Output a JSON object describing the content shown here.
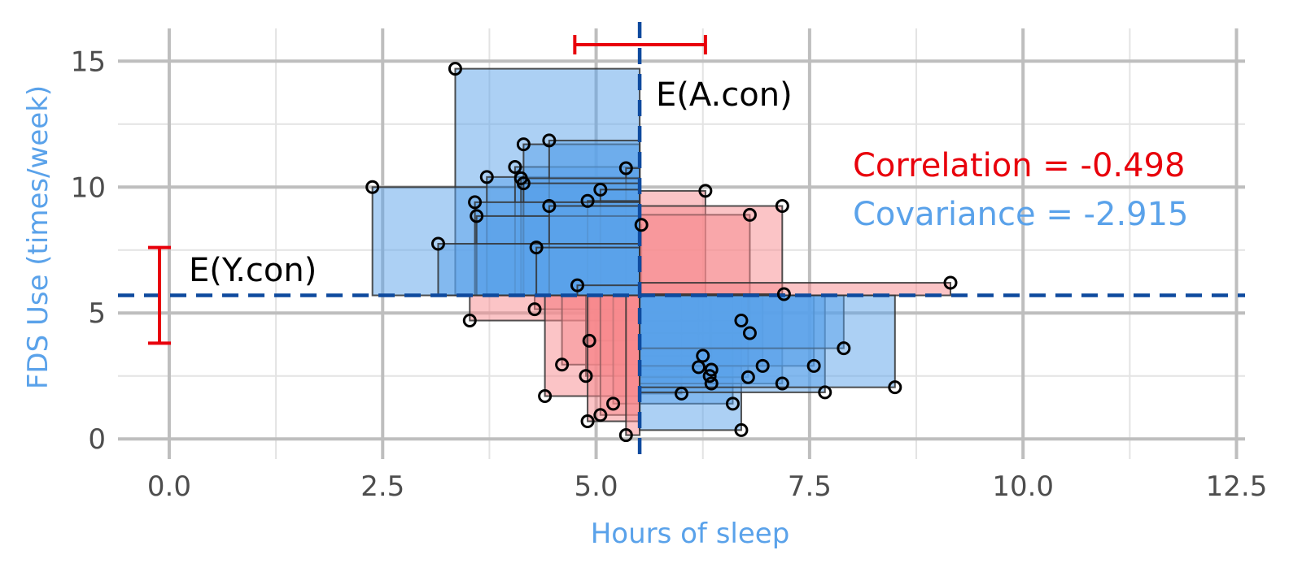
{
  "chart_data": {
    "type": "scatter",
    "title": "",
    "xlabel": "Hours of sleep",
    "ylabel": "FDS Use (times/week)",
    "xlim": [
      -0.6,
      12.6
    ],
    "ylim": [
      -0.8,
      16.3
    ],
    "x_ticks": [
      "0.0",
      "2.5",
      "5.0",
      "7.5",
      "10.0",
      "12.5"
    ],
    "x_tick_values": [
      0,
      2.5,
      5,
      7.5,
      10,
      12.5
    ],
    "y_ticks": [
      "0",
      "5",
      "10",
      "15"
    ],
    "y_tick_values": [
      0,
      5,
      10,
      15
    ],
    "grid": true,
    "mean_x": 5.51,
    "mean_y": 5.7,
    "mean_x_label": "E(A.con)",
    "mean_y_label": "E(Y.con)",
    "mean_x_interval": [
      4.75,
      6.28
    ],
    "mean_y_interval": [
      3.8,
      7.6
    ],
    "correlation_text": "Correlation = -0.498",
    "covariance_text": "Covariance = -2.915",
    "points": [
      {
        "x": 3.35,
        "y": 14.7
      },
      {
        "x": 2.38,
        "y": 10.0
      },
      {
        "x": 3.72,
        "y": 10.4
      },
      {
        "x": 4.05,
        "y": 10.8
      },
      {
        "x": 4.15,
        "y": 11.7
      },
      {
        "x": 4.45,
        "y": 11.85
      },
      {
        "x": 5.35,
        "y": 10.75
      },
      {
        "x": 4.12,
        "y": 10.35
      },
      {
        "x": 4.15,
        "y": 10.15
      },
      {
        "x": 5.05,
        "y": 9.9
      },
      {
        "x": 4.9,
        "y": 9.45
      },
      {
        "x": 3.58,
        "y": 9.4
      },
      {
        "x": 3.6,
        "y": 8.85
      },
      {
        "x": 4.45,
        "y": 9.25
      },
      {
        "x": 3.15,
        "y": 7.75
      },
      {
        "x": 4.3,
        "y": 7.6
      },
      {
        "x": 5.53,
        "y": 8.5
      },
      {
        "x": 6.28,
        "y": 9.85
      },
      {
        "x": 6.8,
        "y": 8.9
      },
      {
        "x": 7.18,
        "y": 9.25
      },
      {
        "x": 9.15,
        "y": 6.2
      },
      {
        "x": 7.2,
        "y": 5.75
      },
      {
        "x": 4.78,
        "y": 6.1
      },
      {
        "x": 4.28,
        "y": 5.15
      },
      {
        "x": 3.52,
        "y": 4.7
      },
      {
        "x": 4.92,
        "y": 3.9
      },
      {
        "x": 4.6,
        "y": 2.95
      },
      {
        "x": 4.88,
        "y": 2.5
      },
      {
        "x": 4.4,
        "y": 1.7
      },
      {
        "x": 5.2,
        "y": 1.4
      },
      {
        "x": 5.05,
        "y": 0.95
      },
      {
        "x": 4.9,
        "y": 0.7
      },
      {
        "x": 5.35,
        "y": 0.15
      },
      {
        "x": 6.0,
        "y": 1.8
      },
      {
        "x": 6.6,
        "y": 1.4
      },
      {
        "x": 6.7,
        "y": 0.35
      },
      {
        "x": 6.2,
        "y": 2.85
      },
      {
        "x": 6.25,
        "y": 3.3
      },
      {
        "x": 6.35,
        "y": 2.75
      },
      {
        "x": 6.33,
        "y": 2.5
      },
      {
        "x": 6.35,
        "y": 2.2
      },
      {
        "x": 6.7,
        "y": 4.7
      },
      {
        "x": 6.8,
        "y": 4.2
      },
      {
        "x": 6.95,
        "y": 2.9
      },
      {
        "x": 6.78,
        "y": 2.45
      },
      {
        "x": 7.18,
        "y": 2.2
      },
      {
        "x": 7.55,
        "y": 2.9
      },
      {
        "x": 7.68,
        "y": 1.85
      },
      {
        "x": 7.9,
        "y": 3.6
      },
      {
        "x": 8.5,
        "y": 2.05
      }
    ]
  },
  "colors": {
    "negative_fill": "#5aa2ea",
    "positive_fill": "#f7898d",
    "mean_line": "#0e4a9e",
    "interval": "#e8000b",
    "correlation": "#e8000b",
    "covariance": "#5aa2ea",
    "axis_title": "#5aa2ea",
    "grid_major": "#bebebe",
    "grid_minor": "#e3e3e3"
  }
}
